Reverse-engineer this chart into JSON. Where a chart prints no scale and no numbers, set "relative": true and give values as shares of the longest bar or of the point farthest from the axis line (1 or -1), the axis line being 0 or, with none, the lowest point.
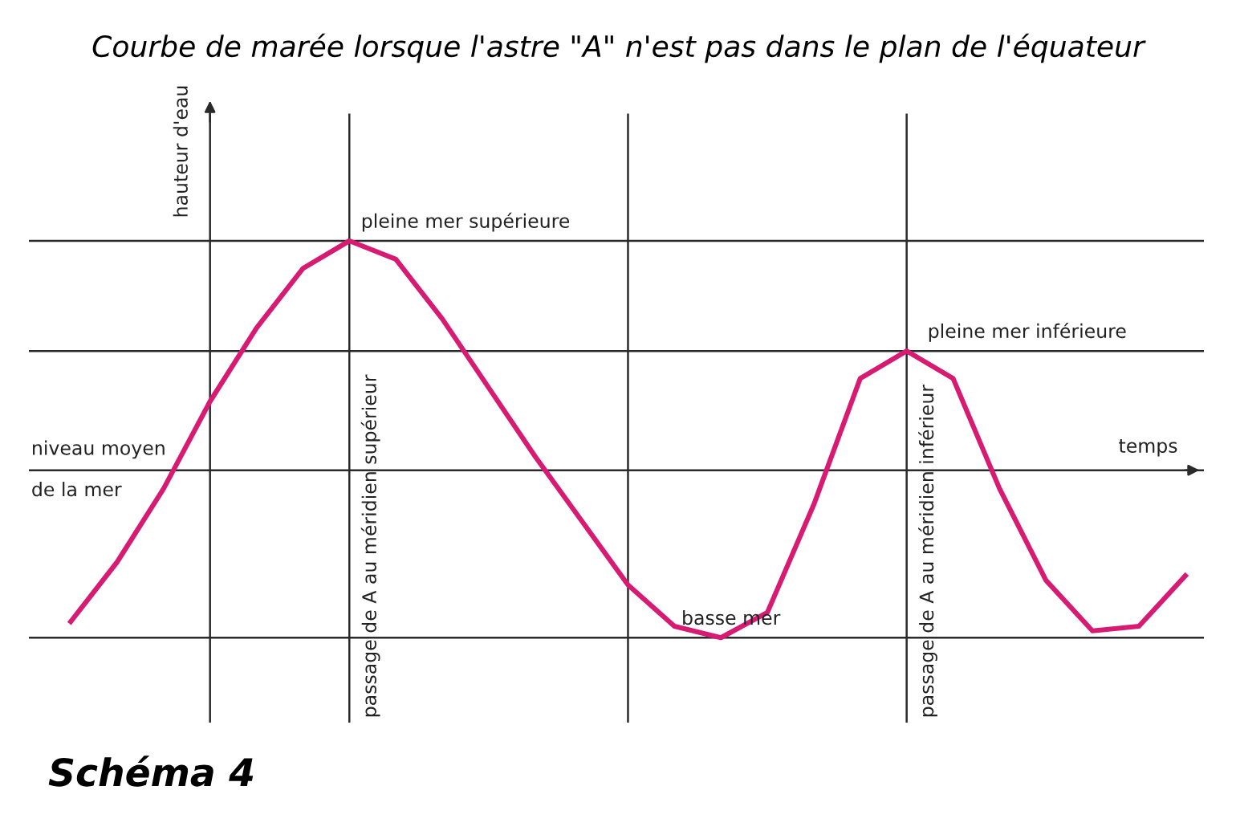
{
  "chart_data": {
    "type": "line",
    "relative": true,
    "title": "Courbe de marée lorsque l'astre \"A\" n'est pas dans le plan de l'équateur",
    "xlabel": "temps",
    "ylabel": "hauteur d'eau",
    "categories": [
      null,
      null,
      null,
      null,
      null,
      null,
      null,
      null,
      null,
      null,
      null,
      null,
      null,
      null,
      null,
      null,
      null,
      null,
      null,
      null,
      null,
      null,
      null,
      null,
      null
    ],
    "series": [
      {
        "color": "#d81b72",
        "values": [
          -0.66,
          -0.4,
          -0.08,
          0.3,
          0.62,
          0.88,
          1,
          0.92,
          0.66,
          0.36,
          0.06,
          -0.22,
          -0.5,
          -0.68,
          -0.73,
          -0.62,
          -0.15,
          0.4,
          0.52,
          0.4,
          -0.08,
          -0.48,
          -0.7,
          -0.68,
          -0.46
        ]
      }
    ],
    "annotations": [
      "Schéma 4",
      "pleine mer supérieure",
      "pleine mer inférieure",
      "niveau moyen\nde la mer",
      "basse mer",
      "passage de A au méridien supérieur",
      "passage de A au méridien inférieur"
    ],
    "grid": true,
    "legend": false,
    "line_style": "solid",
    "marker": "none"
  }
}
